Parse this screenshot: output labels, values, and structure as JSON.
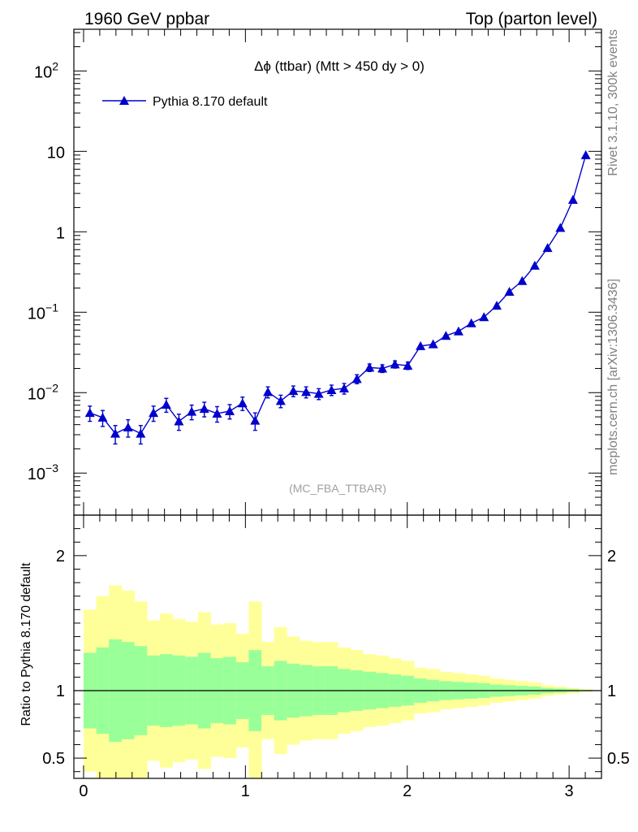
{
  "header": {
    "left": "1960 GeV ppbar",
    "right": "Top (parton level)"
  },
  "side_labels": {
    "top": "Rivet 3.1.10,  300k events",
    "bottom": "mcplots.cern.ch [arXiv:1306.3436]"
  },
  "colors": {
    "series": "#0000cc",
    "band_outer": "#ffff99",
    "band_inner": "#99ff99"
  },
  "chart_data": [
    {
      "type": "line",
      "title": "Δϕ (ttbar) (Mtt > 450 dy > 0)",
      "watermark": "(MC_FBA_TTBAR)",
      "ylabel": "",
      "y_scale": "log",
      "ylim": [
        0.0003,
        330
      ],
      "xlim": [
        -0.06,
        3.2
      ],
      "y_ticks": [
        {
          "value": 100,
          "base": "10",
          "exp": "2"
        },
        {
          "value": 10,
          "base": "10",
          "exp": ""
        },
        {
          "value": 1,
          "base": "1",
          "exp": ""
        },
        {
          "value": 0.1,
          "base": "10",
          "exp": "−1"
        },
        {
          "value": 0.01,
          "base": "10",
          "exp": "−2"
        },
        {
          "value": 0.001,
          "base": "10",
          "exp": "−3"
        }
      ],
      "legend": {
        "position": "top-left",
        "entry": "Pythia 8.170 default",
        "marker": "triangle-up"
      },
      "series": [
        {
          "name": "Pythia 8.170 default",
          "points": [
            {
              "x": 0.039,
              "y": 0.0056,
              "err": 0.0012
            },
            {
              "x": 0.118,
              "y": 0.0049,
              "err": 0.0011
            },
            {
              "x": 0.196,
              "y": 0.0031,
              "err": 0.0008
            },
            {
              "x": 0.275,
              "y": 0.0037,
              "err": 0.0009
            },
            {
              "x": 0.353,
              "y": 0.0031,
              "err": 0.0008
            },
            {
              "x": 0.432,
              "y": 0.0056,
              "err": 0.0012
            },
            {
              "x": 0.511,
              "y": 0.0071,
              "err": 0.0014
            },
            {
              "x": 0.589,
              "y": 0.0044,
              "err": 0.001
            },
            {
              "x": 0.668,
              "y": 0.0058,
              "err": 0.0012
            },
            {
              "x": 0.746,
              "y": 0.0063,
              "err": 0.0013
            },
            {
              "x": 0.825,
              "y": 0.0055,
              "err": 0.0012
            },
            {
              "x": 0.903,
              "y": 0.0059,
              "err": 0.0012
            },
            {
              "x": 0.982,
              "y": 0.0074,
              "err": 0.0014
            },
            {
              "x": 1.06,
              "y": 0.0045,
              "err": 0.0011
            },
            {
              "x": 1.139,
              "y": 0.0102,
              "err": 0.0016
            },
            {
              "x": 1.218,
              "y": 0.0079,
              "err": 0.0014
            },
            {
              "x": 1.296,
              "y": 0.0105,
              "err": 0.0016
            },
            {
              "x": 1.375,
              "y": 0.0102,
              "err": 0.0016
            },
            {
              "x": 1.453,
              "y": 0.0097,
              "err": 0.0015
            },
            {
              "x": 1.532,
              "y": 0.0108,
              "err": 0.0016
            },
            {
              "x": 1.61,
              "y": 0.0113,
              "err": 0.0017
            },
            {
              "x": 1.689,
              "y": 0.0148,
              "err": 0.0019
            },
            {
              "x": 1.767,
              "y": 0.0205,
              "err": 0.0022
            },
            {
              "x": 1.846,
              "y": 0.02,
              "err": 0.0022
            },
            {
              "x": 1.924,
              "y": 0.0225,
              "err": 0.0023
            },
            {
              "x": 2.003,
              "y": 0.0217,
              "err": 0.0023
            },
            {
              "x": 2.082,
              "y": 0.038,
              "err": 0.003
            },
            {
              "x": 2.16,
              "y": 0.04,
              "err": 0.003
            },
            {
              "x": 2.239,
              "y": 0.051,
              "err": 0.003
            },
            {
              "x": 2.317,
              "y": 0.058,
              "err": 0.003
            },
            {
              "x": 2.396,
              "y": 0.073,
              "err": 0.004
            },
            {
              "x": 2.474,
              "y": 0.087,
              "err": 0.004
            },
            {
              "x": 2.553,
              "y": 0.121,
              "err": 0.005
            },
            {
              "x": 2.631,
              "y": 0.18,
              "err": 0.006
            },
            {
              "x": 2.71,
              "y": 0.245,
              "err": 0.007
            },
            {
              "x": 2.788,
              "y": 0.38,
              "err": 0.009
            },
            {
              "x": 2.867,
              "y": 0.63,
              "err": 0.012
            },
            {
              "x": 2.946,
              "y": 1.12,
              "err": 0.02
            },
            {
              "x": 3.024,
              "y": 2.5,
              "err": 0.03
            },
            {
              "x": 3.103,
              "y": 9.0,
              "err": 0.06
            }
          ]
        }
      ]
    },
    {
      "type": "area",
      "title": "",
      "ylabel": "Ratio to Pythia 8.170 default",
      "ylim": [
        0.35,
        2.3
      ],
      "xlim": [
        -0.06,
        3.2
      ],
      "x_ticks": [
        "0",
        "1",
        "2",
        "3"
      ],
      "y_ticks": [
        "0.5",
        "1",
        "2"
      ],
      "reference_line": 1,
      "bin_edges": [
        0,
        0.0785,
        0.157,
        0.2355,
        0.314,
        0.3925,
        0.471,
        0.5495,
        0.628,
        0.7065,
        0.785,
        0.8635,
        0.942,
        1.0205,
        1.099,
        1.1775,
        1.256,
        1.3345,
        1.413,
        1.4915,
        1.57,
        1.6485,
        1.727,
        1.8055,
        1.884,
        1.9625,
        2.041,
        2.1195,
        2.198,
        2.2765,
        2.355,
        2.4335,
        2.512,
        2.5905,
        2.669,
        2.7475,
        2.826,
        2.9045,
        2.983,
        3.0615,
        3.1416
      ],
      "bands": {
        "outer_up": [
          1.6,
          1.7,
          1.78,
          1.74,
          1.66,
          1.52,
          1.57,
          1.53,
          1.51,
          1.58,
          1.49,
          1.5,
          1.42,
          1.66,
          1.36,
          1.47,
          1.4,
          1.37,
          1.36,
          1.36,
          1.32,
          1.3,
          1.27,
          1.26,
          1.24,
          1.22,
          1.17,
          1.16,
          1.14,
          1.13,
          1.12,
          1.11,
          1.09,
          1.08,
          1.07,
          1.06,
          1.04,
          1.03,
          1.02,
          1.01
        ],
        "inner_up": [
          1.28,
          1.32,
          1.38,
          1.36,
          1.33,
          1.26,
          1.27,
          1.26,
          1.25,
          1.28,
          1.24,
          1.25,
          1.21,
          1.3,
          1.18,
          1.22,
          1.2,
          1.19,
          1.18,
          1.18,
          1.16,
          1.15,
          1.14,
          1.13,
          1.12,
          1.11,
          1.09,
          1.08,
          1.07,
          1.065,
          1.06,
          1.055,
          1.045,
          1.04,
          1.035,
          1.03,
          1.02,
          1.015,
          1.01,
          1.005
        ],
        "inner_down": [
          0.72,
          0.68,
          0.62,
          0.64,
          0.67,
          0.74,
          0.73,
          0.74,
          0.75,
          0.72,
          0.76,
          0.75,
          0.79,
          0.7,
          0.82,
          0.78,
          0.8,
          0.81,
          0.82,
          0.82,
          0.84,
          0.85,
          0.86,
          0.87,
          0.88,
          0.89,
          0.91,
          0.92,
          0.93,
          0.935,
          0.94,
          0.945,
          0.955,
          0.96,
          0.965,
          0.97,
          0.98,
          0.985,
          0.99,
          0.995
        ],
        "outer_down": [
          0.4,
          0.3,
          0.22,
          0.26,
          0.34,
          0.48,
          0.43,
          0.47,
          0.49,
          0.42,
          0.51,
          0.5,
          0.58,
          0.34,
          0.64,
          0.53,
          0.6,
          0.63,
          0.64,
          0.64,
          0.68,
          0.7,
          0.73,
          0.74,
          0.76,
          0.78,
          0.83,
          0.84,
          0.86,
          0.87,
          0.88,
          0.89,
          0.91,
          0.92,
          0.93,
          0.94,
          0.96,
          0.97,
          0.98,
          0.99
        ]
      }
    }
  ]
}
